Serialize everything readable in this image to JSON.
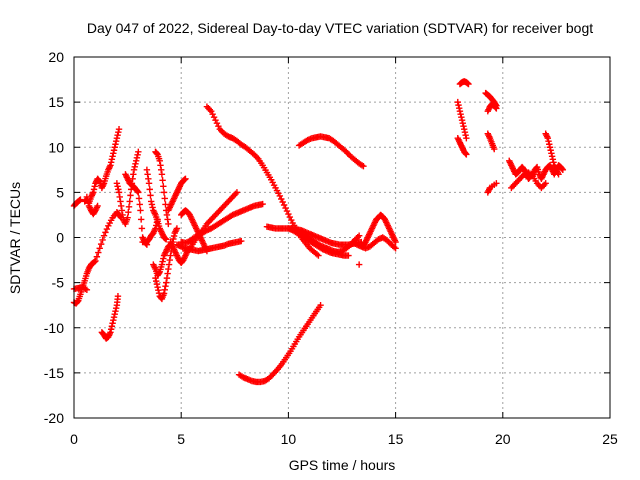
{
  "chart_data": {
    "type": "scatter",
    "title": "Day 047 of 2022, Sidereal Day-to-day VTEC variation (SDTVAR) for receiver bogt",
    "xlabel": "GPS time / hours",
    "ylabel": "SDTVAR / TECUs",
    "xlim": [
      0,
      25
    ],
    "ylim": [
      -20,
      20
    ],
    "x_ticks": [
      "0",
      "5",
      "10",
      "15",
      "20",
      "25"
    ],
    "y_ticks": [
      "-20",
      "-15",
      "-10",
      "-5",
      "0",
      "5",
      "10",
      "15",
      "20"
    ],
    "grid": true,
    "legend": "none",
    "marker": "plus",
    "color": "#ff0000",
    "series": [
      {
        "x": [
          0.0,
          0.1,
          0.2,
          0.3
        ],
        "y": [
          3.5,
          3.8,
          4.0,
          4.2
        ]
      },
      {
        "x": [
          0.0,
          0.1,
          0.2,
          0.3,
          0.4,
          0.5,
          0.6,
          0.7,
          0.8,
          0.9,
          1.0,
          1.2,
          1.4,
          1.6,
          1.8,
          2.0,
          2.1,
          2.2
        ],
        "y": [
          -7.2,
          -7.3,
          -7.0,
          -6.3,
          -5.5,
          -4.8,
          -4.0,
          -3.4,
          -3.0,
          -2.8,
          -2.6,
          -1.2,
          0.2,
          1.3,
          2.2,
          2.8,
          2.5,
          2.2
        ]
      },
      {
        "x": [
          0.0,
          0.2,
          0.4,
          0.6
        ],
        "y": [
          -5.7,
          -5.6,
          -5.5,
          -5.8
        ]
      },
      {
        "x": [
          1.3,
          1.4,
          1.5,
          1.6,
          1.7,
          1.8,
          1.9,
          2.0,
          2.05
        ],
        "y": [
          -10.5,
          -10.8,
          -11.2,
          -11.0,
          -10.5,
          -9.5,
          -8.5,
          -7.5,
          -6.5
        ]
      },
      {
        "x": [
          0.5,
          0.6,
          0.7,
          0.8,
          0.9,
          1.0,
          1.1,
          1.2,
          1.3,
          1.4,
          1.5,
          1.6,
          1.7,
          1.8,
          1.9,
          2.0,
          2.1
        ],
        "y": [
          4.0,
          4.2,
          3.8,
          4.5,
          5.0,
          6.0,
          6.5,
          6.2,
          5.5,
          6.0,
          6.8,
          7.5,
          8.0,
          9.0,
          10.0,
          11.0,
          12.0
        ]
      },
      {
        "x": [
          0.6,
          0.7,
          0.8,
          0.9,
          1.0,
          1.1
        ],
        "y": [
          4.5,
          3.5,
          3.0,
          2.6,
          3.0,
          3.5
        ]
      },
      {
        "x": [
          2.0,
          2.1,
          2.2,
          2.3,
          2.4,
          2.5,
          2.6,
          2.7,
          2.8,
          2.9,
          3.0
        ],
        "y": [
          6.0,
          5.0,
          3.5,
          2.0,
          1.5,
          2.2,
          4.0,
          6.0,
          7.5,
          8.5,
          9.5
        ]
      },
      {
        "x": [
          2.4,
          2.5,
          2.6,
          2.7,
          2.8,
          2.9,
          3.0,
          3.1,
          3.2,
          3.3,
          3.4
        ],
        "y": [
          7.0,
          6.5,
          6.0,
          5.8,
          5.6,
          5.3,
          5.0,
          3.0,
          0.0,
          -0.5,
          -0.8
        ]
      },
      {
        "x": [
          3.2,
          3.4,
          3.5,
          3.6,
          3.7,
          3.8,
          3.9
        ],
        "y": [
          -0.5,
          -0.5,
          -0.2,
          0.2,
          0.5,
          1.0,
          2.0
        ]
      },
      {
        "x": [
          3.4,
          3.5,
          3.6,
          3.7,
          3.8,
          3.9,
          4.0,
          4.1,
          4.2,
          4.3
        ],
        "y": [
          7.5,
          6.0,
          4.0,
          3.0,
          2.5,
          1.8,
          1.0,
          0.5,
          0.0,
          -0.2
        ]
      },
      {
        "x": [
          3.8,
          3.9,
          4.0,
          4.1,
          4.2,
          4.3,
          4.4
        ],
        "y": [
          9.5,
          9.2,
          8.5,
          7.0,
          5.0,
          3.0,
          1.5
        ]
      },
      {
        "x": [
          3.8,
          3.9,
          4.0,
          4.1,
          4.2,
          4.3,
          4.4,
          4.5,
          4.6,
          4.7,
          4.8
        ],
        "y": [
          -4.5,
          -5.5,
          -6.5,
          -6.8,
          -6.2,
          -5.0,
          -3.5,
          -2.0,
          -0.5,
          0.5,
          1.0
        ]
      },
      {
        "x": [
          3.7,
          3.8,
          3.9,
          4.0,
          4.1,
          4.2,
          4.3,
          4.4,
          4.5
        ],
        "y": [
          -3.0,
          -3.5,
          -4.2,
          -3.8,
          -3.0,
          -2.0,
          -1.5,
          -1.0,
          -0.8
        ]
      },
      {
        "x": [
          4.4,
          4.5,
          4.6,
          4.7,
          4.8,
          4.9,
          5.0,
          5.1,
          5.2
        ],
        "y": [
          3.0,
          3.5,
          4.0,
          4.5,
          5.0,
          5.5,
          6.0,
          6.3,
          6.5
        ]
      },
      {
        "x": [
          4.5,
          4.6,
          4.7,
          4.8,
          4.9,
          5.0,
          5.1,
          5.2,
          5.3
        ],
        "y": [
          -0.5,
          -1.0,
          -1.5,
          -2.0,
          -2.5,
          -2.8,
          -2.5,
          -2.0,
          -1.5
        ]
      },
      {
        "x": [
          4.8,
          5.0,
          5.2,
          5.4,
          5.6,
          5.8,
          6.0,
          6.2,
          6.4,
          6.6,
          6.8,
          7.0,
          7.2,
          7.4,
          7.6,
          7.8
        ],
        "y": [
          -0.8,
          -1.0,
          -1.2,
          -1.3,
          -1.4,
          -1.5,
          -1.4,
          -1.3,
          -1.2,
          -1.1,
          -1.0,
          -0.9,
          -0.7,
          -0.6,
          -0.5,
          -0.4
        ]
      },
      {
        "x": [
          5.0,
          5.2,
          5.4,
          5.6,
          5.8,
          6.0,
          6.2,
          6.4,
          6.6,
          6.8,
          7.0,
          7.2,
          7.4,
          7.6,
          7.8,
          8.0,
          8.2,
          8.4,
          8.6,
          8.8
        ],
        "y": [
          -0.5,
          -0.6,
          -0.4,
          0.0,
          0.2,
          0.5,
          0.8,
          1.0,
          1.3,
          1.6,
          1.9,
          2.2,
          2.5,
          2.7,
          2.9,
          3.1,
          3.3,
          3.5,
          3.6,
          3.7
        ]
      },
      {
        "x": [
          5.2,
          5.4,
          5.6,
          5.8,
          6.0,
          6.2,
          6.4,
          6.6,
          6.8,
          7.0,
          7.2,
          7.4,
          7.6
        ],
        "y": [
          -1.5,
          -1.2,
          -0.5,
          0.2,
          0.8,
          1.5,
          2.0,
          2.5,
          3.0,
          3.5,
          4.0,
          4.5,
          5.0
        ]
      },
      {
        "x": [
          5.0,
          5.1,
          5.2,
          5.3,
          5.4,
          5.5,
          5.6,
          5.7,
          5.8,
          5.9,
          6.0,
          6.1,
          6.2
        ],
        "y": [
          2.5,
          2.8,
          3.0,
          2.8,
          2.5,
          2.0,
          1.5,
          1.0,
          0.5,
          0.0,
          -0.5,
          -1.0,
          -1.5
        ]
      },
      {
        "x": [
          6.2,
          6.4,
          6.6,
          6.8,
          7.0,
          7.2,
          7.4,
          7.6,
          7.8,
          8.0,
          8.2,
          8.4,
          8.6,
          8.8,
          9.0,
          9.2,
          9.4,
          9.6,
          9.8,
          10.0,
          10.2,
          10.4,
          10.6,
          10.8,
          11.0,
          11.2,
          11.4
        ],
        "y": [
          14.5,
          14.0,
          13.0,
          12.0,
          11.5,
          11.2,
          11.0,
          10.7,
          10.3,
          10.0,
          9.6,
          9.2,
          8.7,
          8.0,
          7.2,
          6.4,
          5.5,
          4.6,
          3.6,
          2.6,
          1.6,
          0.8,
          0.0,
          -0.6,
          -1.2,
          -1.6,
          -2.0
        ]
      },
      {
        "x": [
          10.5,
          10.7,
          10.9,
          11.1,
          11.3,
          11.5,
          11.7,
          11.9,
          12.1,
          12.3,
          12.5,
          12.7,
          12.9,
          13.1,
          13.3,
          13.5
        ],
        "y": [
          10.2,
          10.5,
          10.8,
          11.0,
          11.1,
          11.2,
          11.1,
          11.0,
          10.7,
          10.3,
          9.9,
          9.5,
          9.0,
          8.6,
          8.2,
          7.9
        ]
      },
      {
        "x": [
          9.0,
          9.2,
          9.4,
          9.6,
          9.8,
          10.0,
          10.2,
          10.4,
          10.6,
          10.8,
          11.0,
          11.2,
          11.4,
          11.6,
          11.8,
          12.0,
          12.2,
          12.4,
          12.6,
          12.8,
          13.0,
          13.2,
          13.4
        ],
        "y": [
          1.2,
          1.1,
          1.0,
          1.0,
          1.0,
          1.0,
          1.0,
          0.9,
          0.8,
          0.6,
          0.4,
          0.2,
          0.0,
          -0.2,
          -0.4,
          -0.6,
          -0.7,
          -0.8,
          -0.8,
          -0.8,
          -0.7,
          -0.6,
          -0.5
        ]
      },
      {
        "x": [
          10.5,
          10.7,
          10.9,
          11.1,
          11.3,
          11.5,
          11.7,
          11.9,
          12.1,
          12.3,
          12.5,
          12.7,
          12.9,
          13.1,
          13.3
        ],
        "y": [
          0.5,
          0.2,
          0.0,
          -0.3,
          -0.6,
          -0.9,
          -1.1,
          -1.3,
          -1.5,
          -1.6,
          -1.5,
          -1.2,
          -0.8,
          -0.3,
          0.2
        ]
      },
      {
        "x": [
          10.0,
          10.2,
          10.4,
          10.6,
          10.8,
          11.0,
          11.2,
          11.4,
          11.6,
          11.8,
          12.0,
          12.2,
          12.4,
          12.6,
          12.8
        ],
        "y": [
          1.0,
          0.8,
          0.5,
          0.2,
          -0.1,
          -0.4,
          -0.7,
          -1.0,
          -1.3,
          -1.5,
          -1.7,
          -1.8,
          -1.9,
          -2.0,
          -2.0
        ]
      },
      {
        "x": [
          13.5,
          13.6,
          13.7,
          13.8,
          13.9,
          14.0,
          14.1,
          14.2,
          14.3,
          14.4,
          14.5,
          14.6,
          14.7,
          14.8,
          14.9,
          15.0
        ],
        "y": [
          -0.8,
          -0.5,
          0.0,
          0.5,
          1.0,
          1.5,
          2.0,
          2.2,
          2.5,
          2.3,
          2.0,
          1.5,
          1.0,
          0.5,
          0.0,
          -0.5
        ]
      },
      {
        "x": [
          13.0,
          13.2,
          13.4,
          13.6,
          13.8,
          14.0,
          14.2,
          14.4,
          14.6,
          14.8,
          15.0
        ],
        "y": [
          -0.5,
          -0.8,
          -1.0,
          -1.2,
          -1.0,
          -0.6,
          -0.2,
          0.0,
          -0.3,
          -0.8,
          -1.2
        ]
      },
      {
        "x": [
          13.3
        ],
        "y": [
          -3.0
        ]
      },
      {
        "x": [
          7.7,
          7.9,
          8.1,
          8.3,
          8.5,
          8.7,
          8.9,
          9.1,
          9.3,
          9.5,
          9.7,
          9.9,
          10.1,
          10.3,
          10.5,
          10.7,
          10.9,
          11.1,
          11.3,
          11.5
        ],
        "y": [
          -15.2,
          -15.5,
          -15.7,
          -15.9,
          -16.0,
          -16.0,
          -15.9,
          -15.6,
          -15.1,
          -14.6,
          -14.0,
          -13.3,
          -12.6,
          -11.8,
          -11.0,
          -10.3,
          -9.6,
          -8.9,
          -8.2,
          -7.5
        ]
      },
      {
        "x": [
          18.0,
          18.1,
          18.2,
          18.3,
          18.4
        ],
        "y": [
          17.0,
          17.2,
          17.3,
          17.2,
          17.0
        ]
      },
      {
        "x": [
          17.9,
          18.0,
          18.1,
          18.2,
          18.3
        ],
        "y": [
          15.0,
          14.0,
          13.0,
          12.0,
          11.0
        ]
      },
      {
        "x": [
          17.9,
          18.0,
          18.1,
          18.2,
          18.3
        ],
        "y": [
          11.0,
          10.5,
          10.0,
          9.5,
          9.2
        ]
      },
      {
        "x": [
          19.2,
          19.3,
          19.4,
          19.5,
          19.6,
          19.7
        ],
        "y": [
          16.0,
          15.8,
          15.6,
          15.3,
          15.0,
          14.6
        ]
      },
      {
        "x": [
          19.3,
          19.4,
          19.5,
          19.6,
          19.7
        ],
        "y": [
          14.0,
          14.5,
          14.8,
          14.6,
          14.3
        ]
      },
      {
        "x": [
          19.3,
          19.4,
          19.5,
          19.6
        ],
        "y": [
          11.5,
          11.0,
          10.4,
          9.8
        ]
      },
      {
        "x": [
          19.3,
          19.4,
          19.7
        ],
        "y": [
          5.0,
          5.5,
          6.0
        ]
      },
      {
        "x": [
          20.3,
          20.4,
          20.5,
          20.6,
          20.7,
          20.8,
          20.9,
          21.0,
          21.1,
          21.2,
          21.3,
          21.4,
          21.5,
          21.6,
          21.7,
          21.8,
          21.9,
          22.0,
          22.1,
          22.2,
          22.3,
          22.4,
          22.5,
          22.6,
          22.7,
          22.8
        ],
        "y": [
          8.5,
          8.0,
          7.5,
          7.0,
          7.2,
          7.5,
          7.8,
          7.5,
          7.0,
          6.5,
          6.8,
          7.0,
          7.5,
          7.8,
          7.0,
          6.5,
          7.0,
          7.5,
          7.8,
          8.0,
          7.5,
          7.0,
          7.5,
          8.0,
          7.8,
          7.5
        ]
      },
      {
        "x": [
          20.4,
          20.6,
          20.8,
          21.0,
          21.2,
          21.4,
          21.6,
          21.8,
          22.0
        ],
        "y": [
          5.5,
          6.0,
          6.5,
          7.0,
          7.2,
          6.8,
          6.0,
          5.5,
          6.0
        ]
      },
      {
        "x": [
          22.0,
          22.1,
          22.2,
          22.3,
          22.4,
          22.5,
          22.6
        ],
        "y": [
          11.5,
          11.0,
          10.0,
          9.0,
          8.0,
          7.5,
          7.0
        ]
      }
    ]
  }
}
